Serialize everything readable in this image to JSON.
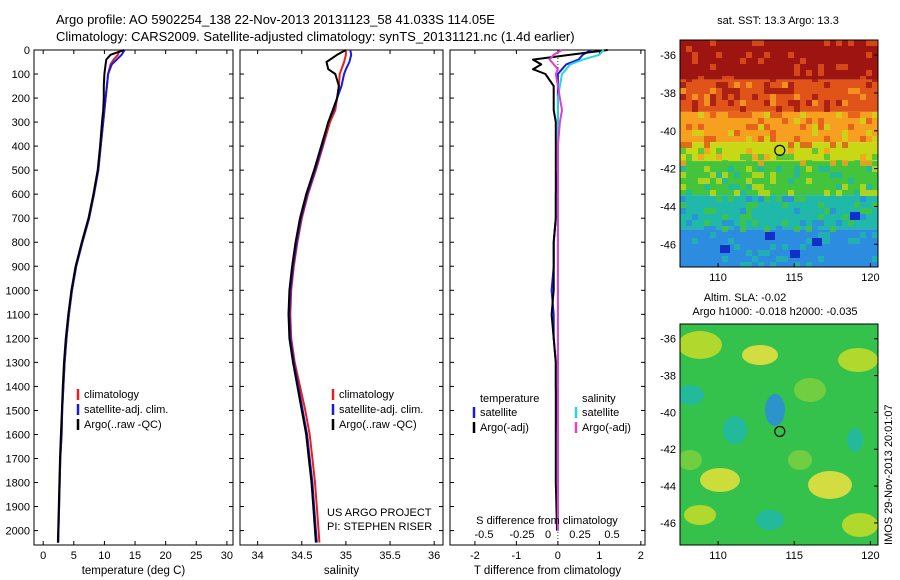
{
  "title": {
    "line1": "Argo profile: AO 5902254_138 22-Nov-2013 20131123_58 41.033S 114.05E",
    "line2": "Climatology: CARS2009. Satellite-adjusted climatology: synTS_20131121.nc (1.4d earlier)"
  },
  "colors": {
    "climatology": "#e8201c",
    "satellite": "#1a1adc",
    "argo": "#000000",
    "satellite_salinity": "#22d8e0",
    "argo_salinity": "#e040d0"
  },
  "depth_ticks": [
    "0",
    "100",
    "200",
    "300",
    "400",
    "500",
    "600",
    "700",
    "800",
    "900",
    "1000",
    "1100",
    "1200",
    "1300",
    "1400",
    "1500",
    "1600",
    "1700",
    "1800",
    "1900",
    "2000"
  ],
  "chart_data": [
    {
      "type": "line",
      "name": "temperature",
      "xlabel": "temperature (deg C)",
      "xlim": [
        -1.5,
        31
      ],
      "ylim": [
        2060,
        0
      ],
      "xticks": [
        "0",
        "5",
        "10",
        "15",
        "20",
        "25",
        "30"
      ],
      "legend": [
        "climatology",
        "satellite-adj. clim.",
        "Argo(..raw -QC)"
      ],
      "depth": [
        0,
        20,
        40,
        60,
        80,
        100,
        150,
        200,
        250,
        300,
        400,
        500,
        600,
        700,
        800,
        900,
        1000,
        1100,
        1200,
        1300,
        1400,
        1500,
        1600,
        1700,
        1800,
        1900,
        2000,
        2050
      ],
      "series": [
        {
          "name": "climatology",
          "color_key": "climatology",
          "values": [
            12.5,
            12.2,
            11.5,
            11.0,
            10.8,
            10.6,
            10.4,
            10.2,
            10.0,
            9.8,
            9.4,
            9.0,
            8.3,
            7.5,
            6.4,
            5.4,
            4.7,
            4.2,
            3.8,
            3.5,
            3.3,
            3.1,
            3.0,
            2.8,
            2.7,
            2.6,
            2.5,
            2.45
          ]
        },
        {
          "name": "satellite-adj. clim.",
          "color_key": "satellite",
          "values": [
            13.3,
            12.8,
            12.0,
            11.2,
            10.9,
            10.6,
            10.4,
            10.2,
            10.0,
            9.8,
            9.4,
            9.0,
            8.3,
            7.5,
            6.4,
            5.4,
            4.7,
            4.2,
            3.8,
            3.5,
            3.3,
            3.1,
            3.0,
            2.8,
            2.7,
            2.6,
            2.5,
            2.45
          ]
        },
        {
          "name": "Argo(..raw -QC)",
          "color_key": "argo",
          "values": [
            13.2,
            11.0,
            10.3,
            10.2,
            10.1,
            10.0,
            9.9,
            9.9,
            9.8,
            9.6,
            9.3,
            8.9,
            8.2,
            7.4,
            6.3,
            5.3,
            4.6,
            4.1,
            3.7,
            3.4,
            3.2,
            3.05,
            2.9,
            2.75,
            2.65,
            2.55,
            2.45,
            2.4
          ]
        }
      ]
    },
    {
      "type": "line",
      "name": "salinity",
      "xlabel": "salinity",
      "xlim": [
        33.8,
        36.1
      ],
      "ylim": [
        2060,
        0
      ],
      "xticks": [
        "34",
        "34.5",
        "35",
        "35.5",
        "36"
      ],
      "legend": [
        "climatology",
        "satellite-adj. clim.",
        "Argo(..raw -QC)"
      ],
      "annotation": [
        "US ARGO PROJECT",
        "PI: STEPHEN RISER"
      ],
      "depth": [
        0,
        20,
        50,
        80,
        100,
        150,
        200,
        250,
        300,
        400,
        500,
        600,
        700,
        800,
        900,
        1000,
        1100,
        1200,
        1300,
        1400,
        1500,
        1600,
        1700,
        1800,
        1900,
        2000,
        2050
      ],
      "series": [
        {
          "name": "climatology",
          "color_key": "climatology",
          "values": [
            35.0,
            35.0,
            34.98,
            34.95,
            34.93,
            34.92,
            34.9,
            34.88,
            34.82,
            34.74,
            34.66,
            34.57,
            34.5,
            34.45,
            34.41,
            34.38,
            34.37,
            34.38,
            34.42,
            34.48,
            34.54,
            34.59,
            34.62,
            34.65,
            34.67,
            34.69,
            34.7
          ]
        },
        {
          "name": "satellite-adj. clim.",
          "color_key": "satellite",
          "values": [
            35.05,
            35.06,
            35.04,
            35.0,
            34.98,
            34.95,
            34.9,
            34.86,
            34.8,
            34.73,
            34.65,
            34.56,
            34.49,
            34.44,
            34.4,
            34.37,
            34.36,
            34.37,
            34.41,
            34.46,
            34.51,
            34.56,
            34.59,
            34.62,
            34.64,
            34.66,
            34.67
          ]
        },
        {
          "name": "Argo(..raw -QC)",
          "color_key": "argo",
          "values": [
            35.0,
            34.9,
            34.78,
            34.8,
            34.88,
            34.92,
            34.9,
            34.85,
            34.8,
            34.72,
            34.64,
            34.55,
            34.48,
            34.43,
            34.39,
            34.36,
            34.35,
            34.36,
            34.4,
            34.45,
            34.5,
            34.55,
            34.58,
            34.61,
            34.63,
            34.65,
            34.66
          ]
        }
      ]
    },
    {
      "type": "line",
      "name": "difference from climatology",
      "xlabel": "T difference from climatology",
      "xlabel_secondary": "S difference from climatology",
      "xlim": [
        -2.6,
        2.1
      ],
      "ylim": [
        2060,
        0
      ],
      "xticks": [
        "-2",
        "-1",
        "0",
        "1",
        "2"
      ],
      "secondary_xticks": [
        "-0.5",
        "-0.25",
        "0",
        "0.25",
        "0.5"
      ],
      "legend_groups": [
        {
          "title": "temperature",
          "entries": [
            "satellite",
            "Argo(-adj)"
          ]
        },
        {
          "title": "salinity",
          "entries": [
            "satellite",
            "Argo(-adj)"
          ]
        }
      ],
      "depth": [
        0,
        20,
        40,
        60,
        80,
        100,
        150,
        200,
        250,
        300,
        400,
        500,
        600,
        700,
        800,
        900,
        1000,
        1100,
        1200,
        1300,
        1400,
        1600,
        1800,
        2000
      ],
      "series": [
        {
          "name": "temperature satellite",
          "color_key": "satellite",
          "values": [
            0.8,
            0.6,
            0.5,
            0.2,
            0.1,
            0.0,
            0.0,
            0.0,
            0.0,
            0.0,
            0.0,
            0.0,
            -0.05,
            -0.05,
            -0.1,
            -0.1,
            -0.15,
            -0.1,
            -0.1,
            -0.05,
            -0.05,
            0.0,
            0.0,
            0.0
          ]
        },
        {
          "name": "temperature Argo(-adj)",
          "color_key": "argo",
          "values": [
            1.2,
            0.3,
            -0.6,
            -0.4,
            -0.6,
            -0.3,
            -0.1,
            -0.1,
            -0.1,
            -0.05,
            -0.05,
            -0.05,
            -0.05,
            -0.05,
            -0.1,
            -0.1,
            -0.1,
            -0.15,
            -0.1,
            -0.05,
            -0.05,
            -0.05,
            -0.05,
            -0.02
          ]
        },
        {
          "name": "salinity satellite",
          "color_key": "satellite_salinity",
          "values": [
            1.1,
            1.0,
            0.6,
            0.3,
            0.2,
            0.1,
            0.05,
            0.0,
            0.0,
            0.0,
            0.0,
            0.0,
            0.0,
            0.0,
            0.0,
            0.0,
            0.0,
            0.0,
            0.0,
            0.0,
            0.0,
            0.0,
            0.0,
            0.0
          ]
        },
        {
          "name": "salinity Argo(-adj)",
          "color_key": "argo_salinity",
          "values": [
            0.1,
            -0.1,
            -0.2,
            -0.1,
            0.0,
            -0.05,
            0.0,
            0.05,
            0.1,
            0.05,
            0.0,
            0.0,
            0.0,
            0.0,
            0.0,
            0.0,
            0.0,
            0.0,
            0.0,
            0.0,
            0.0,
            0.0,
            0.0,
            0.0
          ]
        }
      ]
    },
    {
      "type": "heatmap",
      "name": "sst map",
      "title": "sat. SST: 13.3 Argo: 13.3",
      "xlim": [
        107.5,
        120.5
      ],
      "ylim": [
        -47.2,
        -35.2
      ],
      "xticks": [
        "110",
        "115",
        "120"
      ],
      "yticks": [
        "-36",
        "-38",
        "-40",
        "-42",
        "-44",
        "-46"
      ],
      "marker": {
        "lon": 114.05,
        "lat": -41.033
      },
      "bands": [
        {
          "lat_from": -35.2,
          "lat_to": -37.3,
          "color": "#9e1410"
        },
        {
          "lat_from": -37.3,
          "lat_to": -39.0,
          "color": "#e0541a"
        },
        {
          "lat_from": -39.0,
          "lat_to": -40.6,
          "color": "#f7a020"
        },
        {
          "lat_from": -40.6,
          "lat_to": -41.6,
          "color": "#c8d814"
        },
        {
          "lat_from": -41.6,
          "lat_to": -43.4,
          "color": "#44c43c"
        },
        {
          "lat_from": -43.4,
          "lat_to": -45.2,
          "color": "#20b8a8"
        },
        {
          "lat_from": -45.2,
          "lat_to": -47.2,
          "color": "#2c8ce0"
        }
      ]
    },
    {
      "type": "heatmap",
      "name": "sla map",
      "title_line1": "Altim. SLA: -0.02",
      "title_line2": "Argo h1000: -0.018 h2000: -0.035",
      "xlim": [
        107.5,
        120.5
      ],
      "ylim": [
        -47.2,
        -35.2
      ],
      "xticks": [
        "110",
        "115",
        "120"
      ],
      "yticks": [
        "-36",
        "-38",
        "-40",
        "-42",
        "-44",
        "-46"
      ],
      "marker": {
        "lon": 114.05,
        "lat": -41.033
      },
      "background": "#34c24c"
    }
  ],
  "stamp": "IMOS 29-Nov-2013 20:01:07"
}
